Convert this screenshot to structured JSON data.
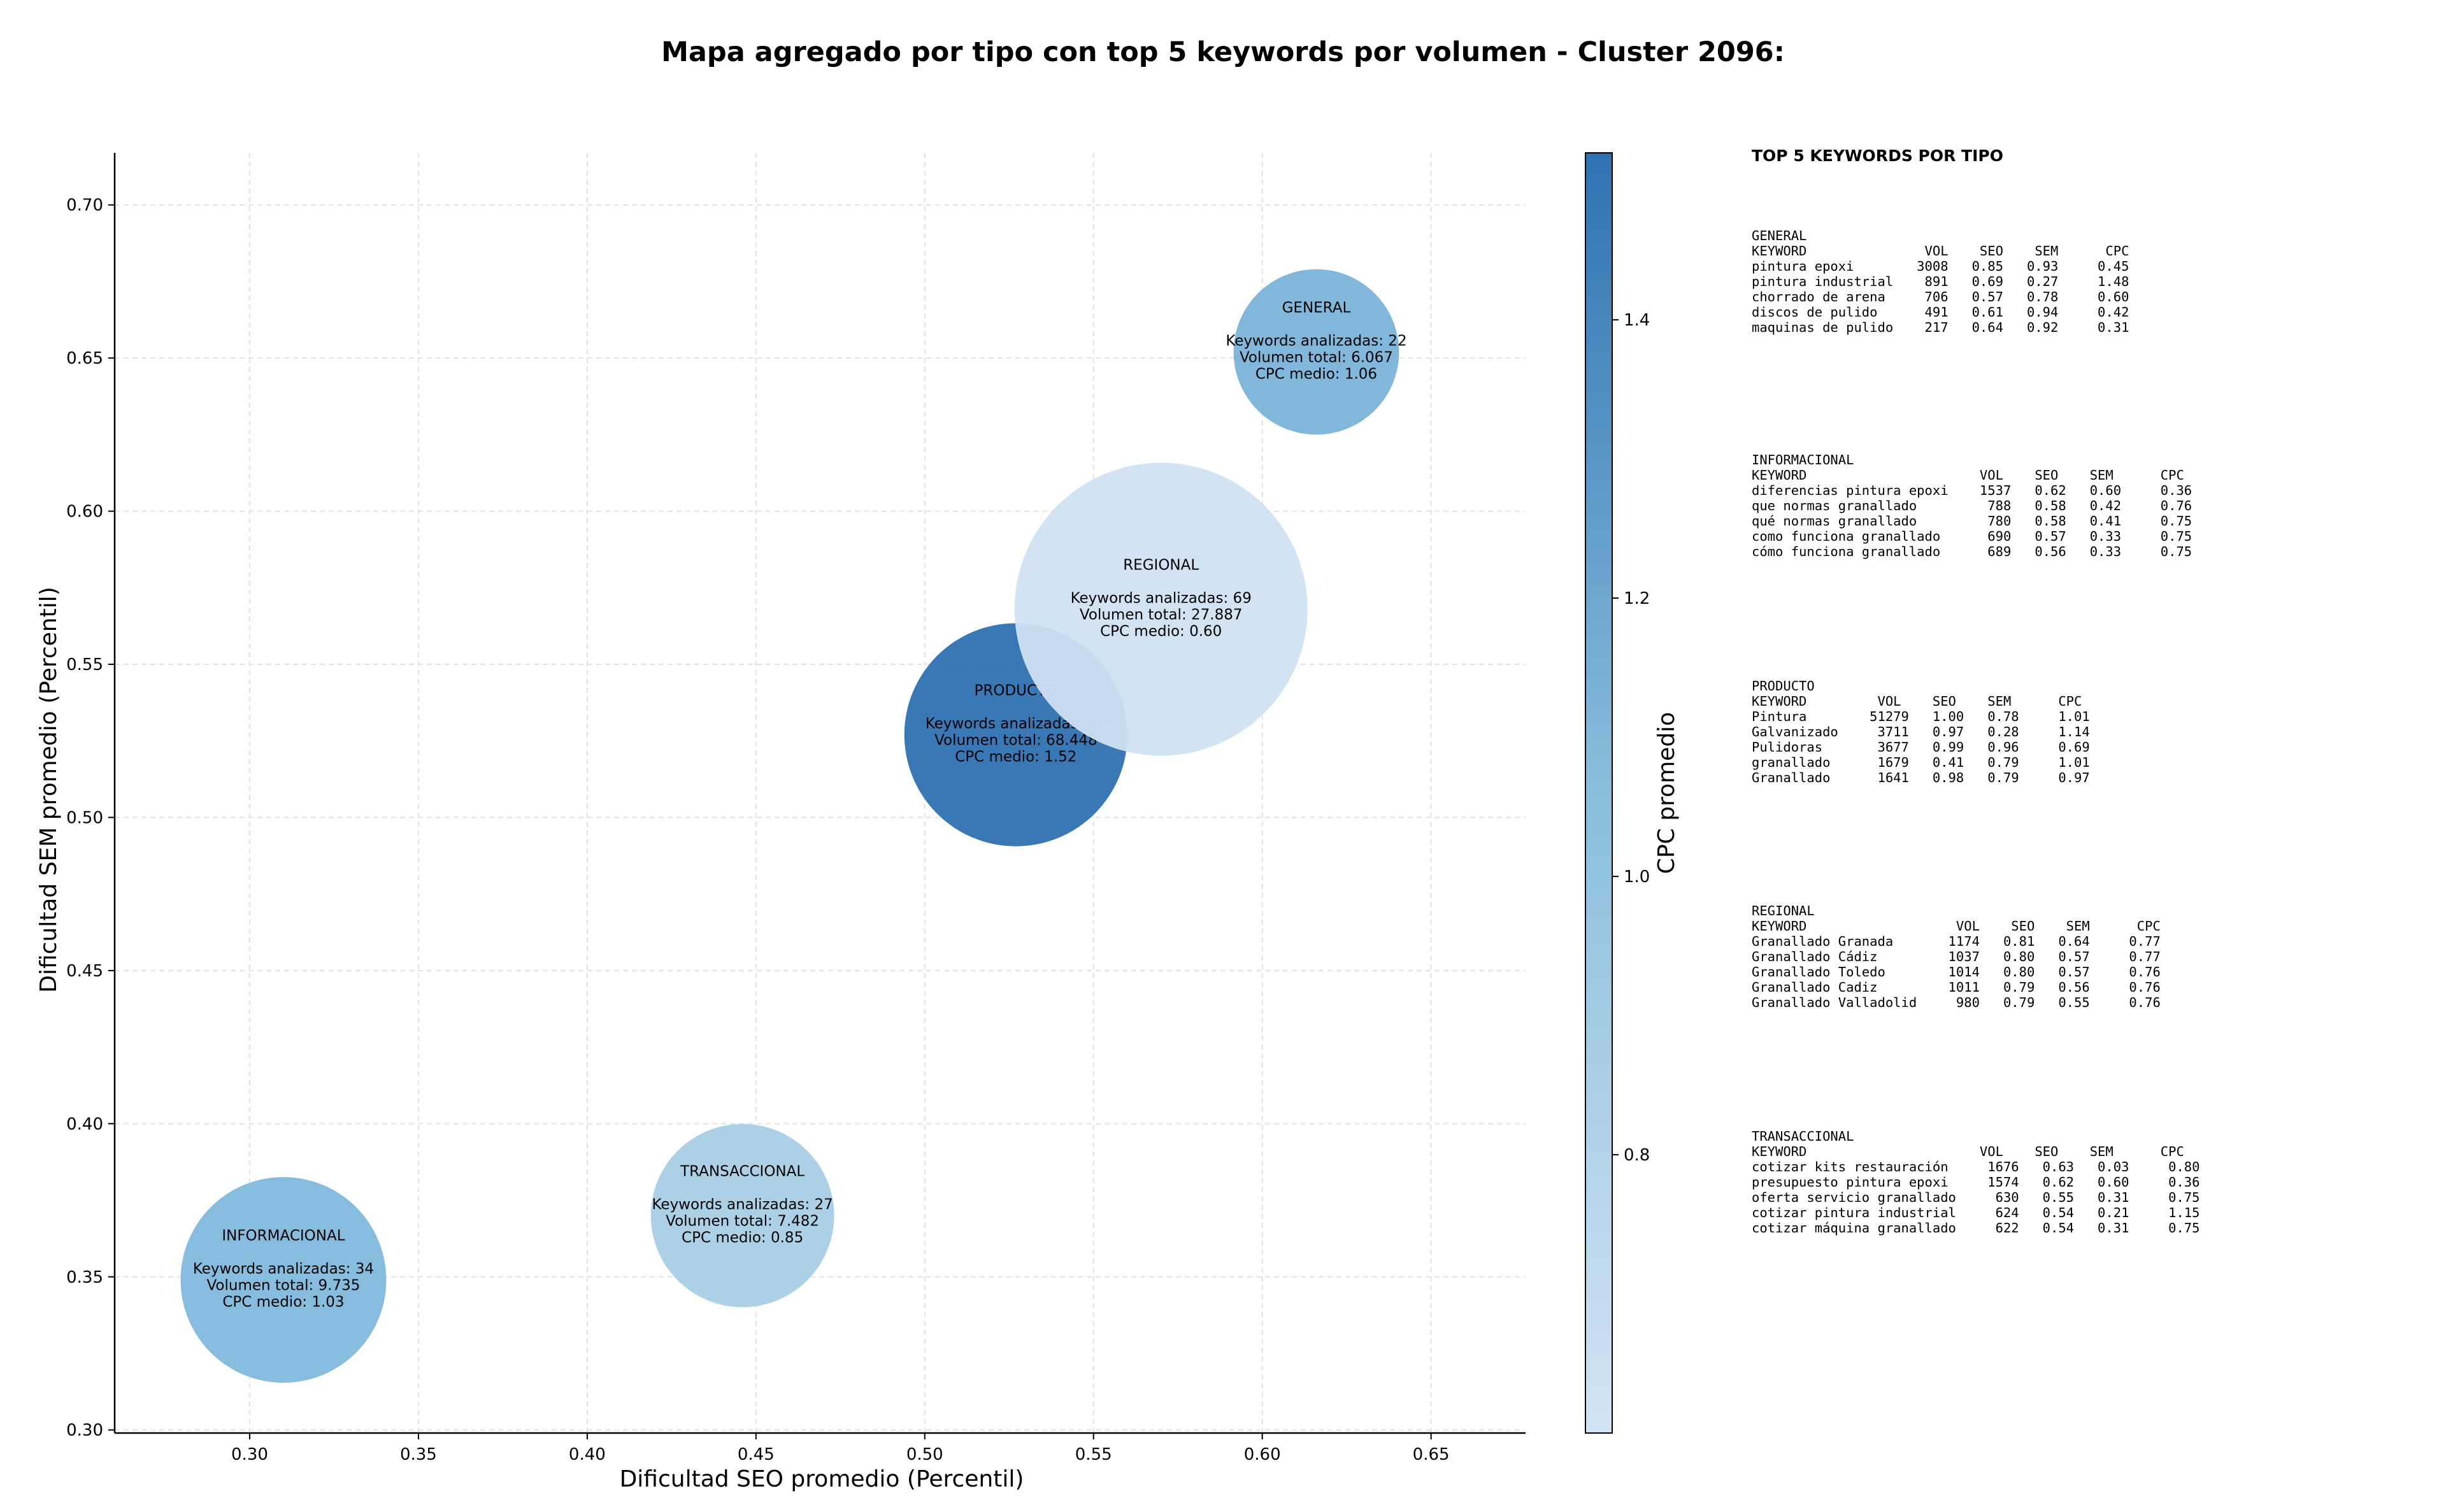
{
  "chart_data": {
    "type": "scatter",
    "title": "Mapa agregado por tipo con top 5 keywords por volumen - Cluster 2096:",
    "xlabel": "Dificultad SEO promedio (Percentil)",
    "ylabel": "Dificultad SEM promedio (Percentil)",
    "colorbar_label": "CPC promedio",
    "xlim": [
      0.26,
      0.678
    ],
    "ylim": [
      0.299,
      0.717
    ],
    "xticks": [
      "0.30",
      "0.35",
      "0.40",
      "0.45",
      "0.50",
      "0.55",
      "0.60",
      "0.65"
    ],
    "yticks": [
      "0.30",
      "0.35",
      "0.40",
      "0.45",
      "0.50",
      "0.55",
      "0.60",
      "0.65",
      "0.70"
    ],
    "colorbar_ticks": [
      "0.8",
      "1.0",
      "1.2",
      "1.4"
    ],
    "colorbar_range": [
      0.6,
      1.52
    ],
    "grid": true,
    "points": [
      {
        "label": "GENERAL",
        "x": 0.616,
        "y": 0.652,
        "keywords": 22,
        "volume": 6067,
        "line1": "Keywords analizadas: 22",
        "line2": "Volumen total: 6.067",
        "line3": "CPC medio: 1.06",
        "cpc": 1.06,
        "color": "#7ab3d9"
      },
      {
        "label": "PRODUCTO",
        "x": 0.527,
        "y": 0.527,
        "keywords": 40,
        "volume": 68448,
        "line1": "Keywords analizadas: 40",
        "line2": "Volumen total: 68.448",
        "line3": "CPC medio: 1.52",
        "cpc": 1.52,
        "color": "#2e71b1"
      },
      {
        "label": "REGIONAL",
        "x": 0.57,
        "y": 0.568,
        "keywords": 69,
        "volume": 27887,
        "line1": "Keywords analizadas: 69",
        "line2": "Volumen total: 27.887",
        "line3": "CPC medio: 0.60",
        "cpc": 0.6,
        "color": "#d0e1f2"
      },
      {
        "label": "INFORMACIONAL",
        "x": 0.31,
        "y": 0.349,
        "keywords": 34,
        "volume": 9735,
        "line1": "Keywords analizadas: 34",
        "line2": "Volumen total: 9.735",
        "line3": "CPC medio: 1.03",
        "cpc": 1.03,
        "color": "#80b8dc"
      },
      {
        "label": "TRANSACCIONAL",
        "x": 0.446,
        "y": 0.37,
        "keywords": 27,
        "volume": 7482,
        "line1": "Keywords analizadas: 27",
        "line2": "Volumen total: 7.482",
        "line3": "CPC medio: 0.85",
        "cpc": 0.85,
        "color": "#a8cde4"
      }
    ],
    "colorbar_colors": {
      "low": "#d3e3f3",
      "high": "#2e72b1"
    }
  },
  "keywords_panel": {
    "heading": "TOP 5 KEYWORDS POR TIPO",
    "blocks": [
      {
        "name": "GENERAL",
        "header": "KEYWORD               VOL    SEO    SEM      CPC",
        "rows": [
          "pintura epoxi        3008   0.85   0.93     0.45",
          "pintura industrial    891   0.69   0.27     1.48",
          "chorrado de arena     706   0.57   0.78     0.60",
          "discos de pulido      491   0.61   0.94     0.42",
          "maquinas de pulido    217   0.64   0.92     0.31"
        ]
      },
      {
        "name": "INFORMACIONAL",
        "header": "KEYWORD                      VOL    SEO    SEM      CPC",
        "rows": [
          "diferencias pintura epoxi    1537   0.62   0.60     0.36",
          "que normas granallado         788   0.58   0.42     0.76",
          "qué normas granallado         780   0.58   0.41     0.75",
          "como funciona granallado      690   0.57   0.33     0.75",
          "cómo funciona granallado      689   0.56   0.33     0.75"
        ]
      },
      {
        "name": "PRODUCTO",
        "header": "KEYWORD         VOL    SEO    SEM      CPC",
        "rows": [
          "Pintura        51279   1.00   0.78     1.01",
          "Galvanizado     3711   0.97   0.28     1.14",
          "Pulidoras       3677   0.99   0.96     0.69",
          "granallado      1679   0.41   0.79     1.01",
          "Granallado      1641   0.98   0.79     0.97"
        ]
      },
      {
        "name": "REGIONAL",
        "header": "KEYWORD                   VOL    SEO    SEM      CPC",
        "rows": [
          "Granallado Granada       1174   0.81   0.64     0.77",
          "Granallado Cádiz         1037   0.80   0.57     0.77",
          "Granallado Toledo        1014   0.80   0.57     0.76",
          "Granallado Cadiz         1011   0.79   0.56     0.76",
          "Granallado Valladolid     980   0.79   0.55     0.76"
        ]
      },
      {
        "name": "TRANSACCIONAL",
        "header": "KEYWORD                      VOL    SEO    SEM      CPC",
        "rows": [
          "cotizar kits restauración     1676   0.63   0.03     0.80",
          "presupuesto pintura epoxi     1574   0.62   0.60     0.36",
          "oferta servicio granallado     630   0.55   0.31     0.75",
          "cotizar pintura industrial     624   0.54   0.21     1.15",
          "cotizar máquina granallado     622   0.54   0.31     0.75"
        ]
      }
    ]
  }
}
